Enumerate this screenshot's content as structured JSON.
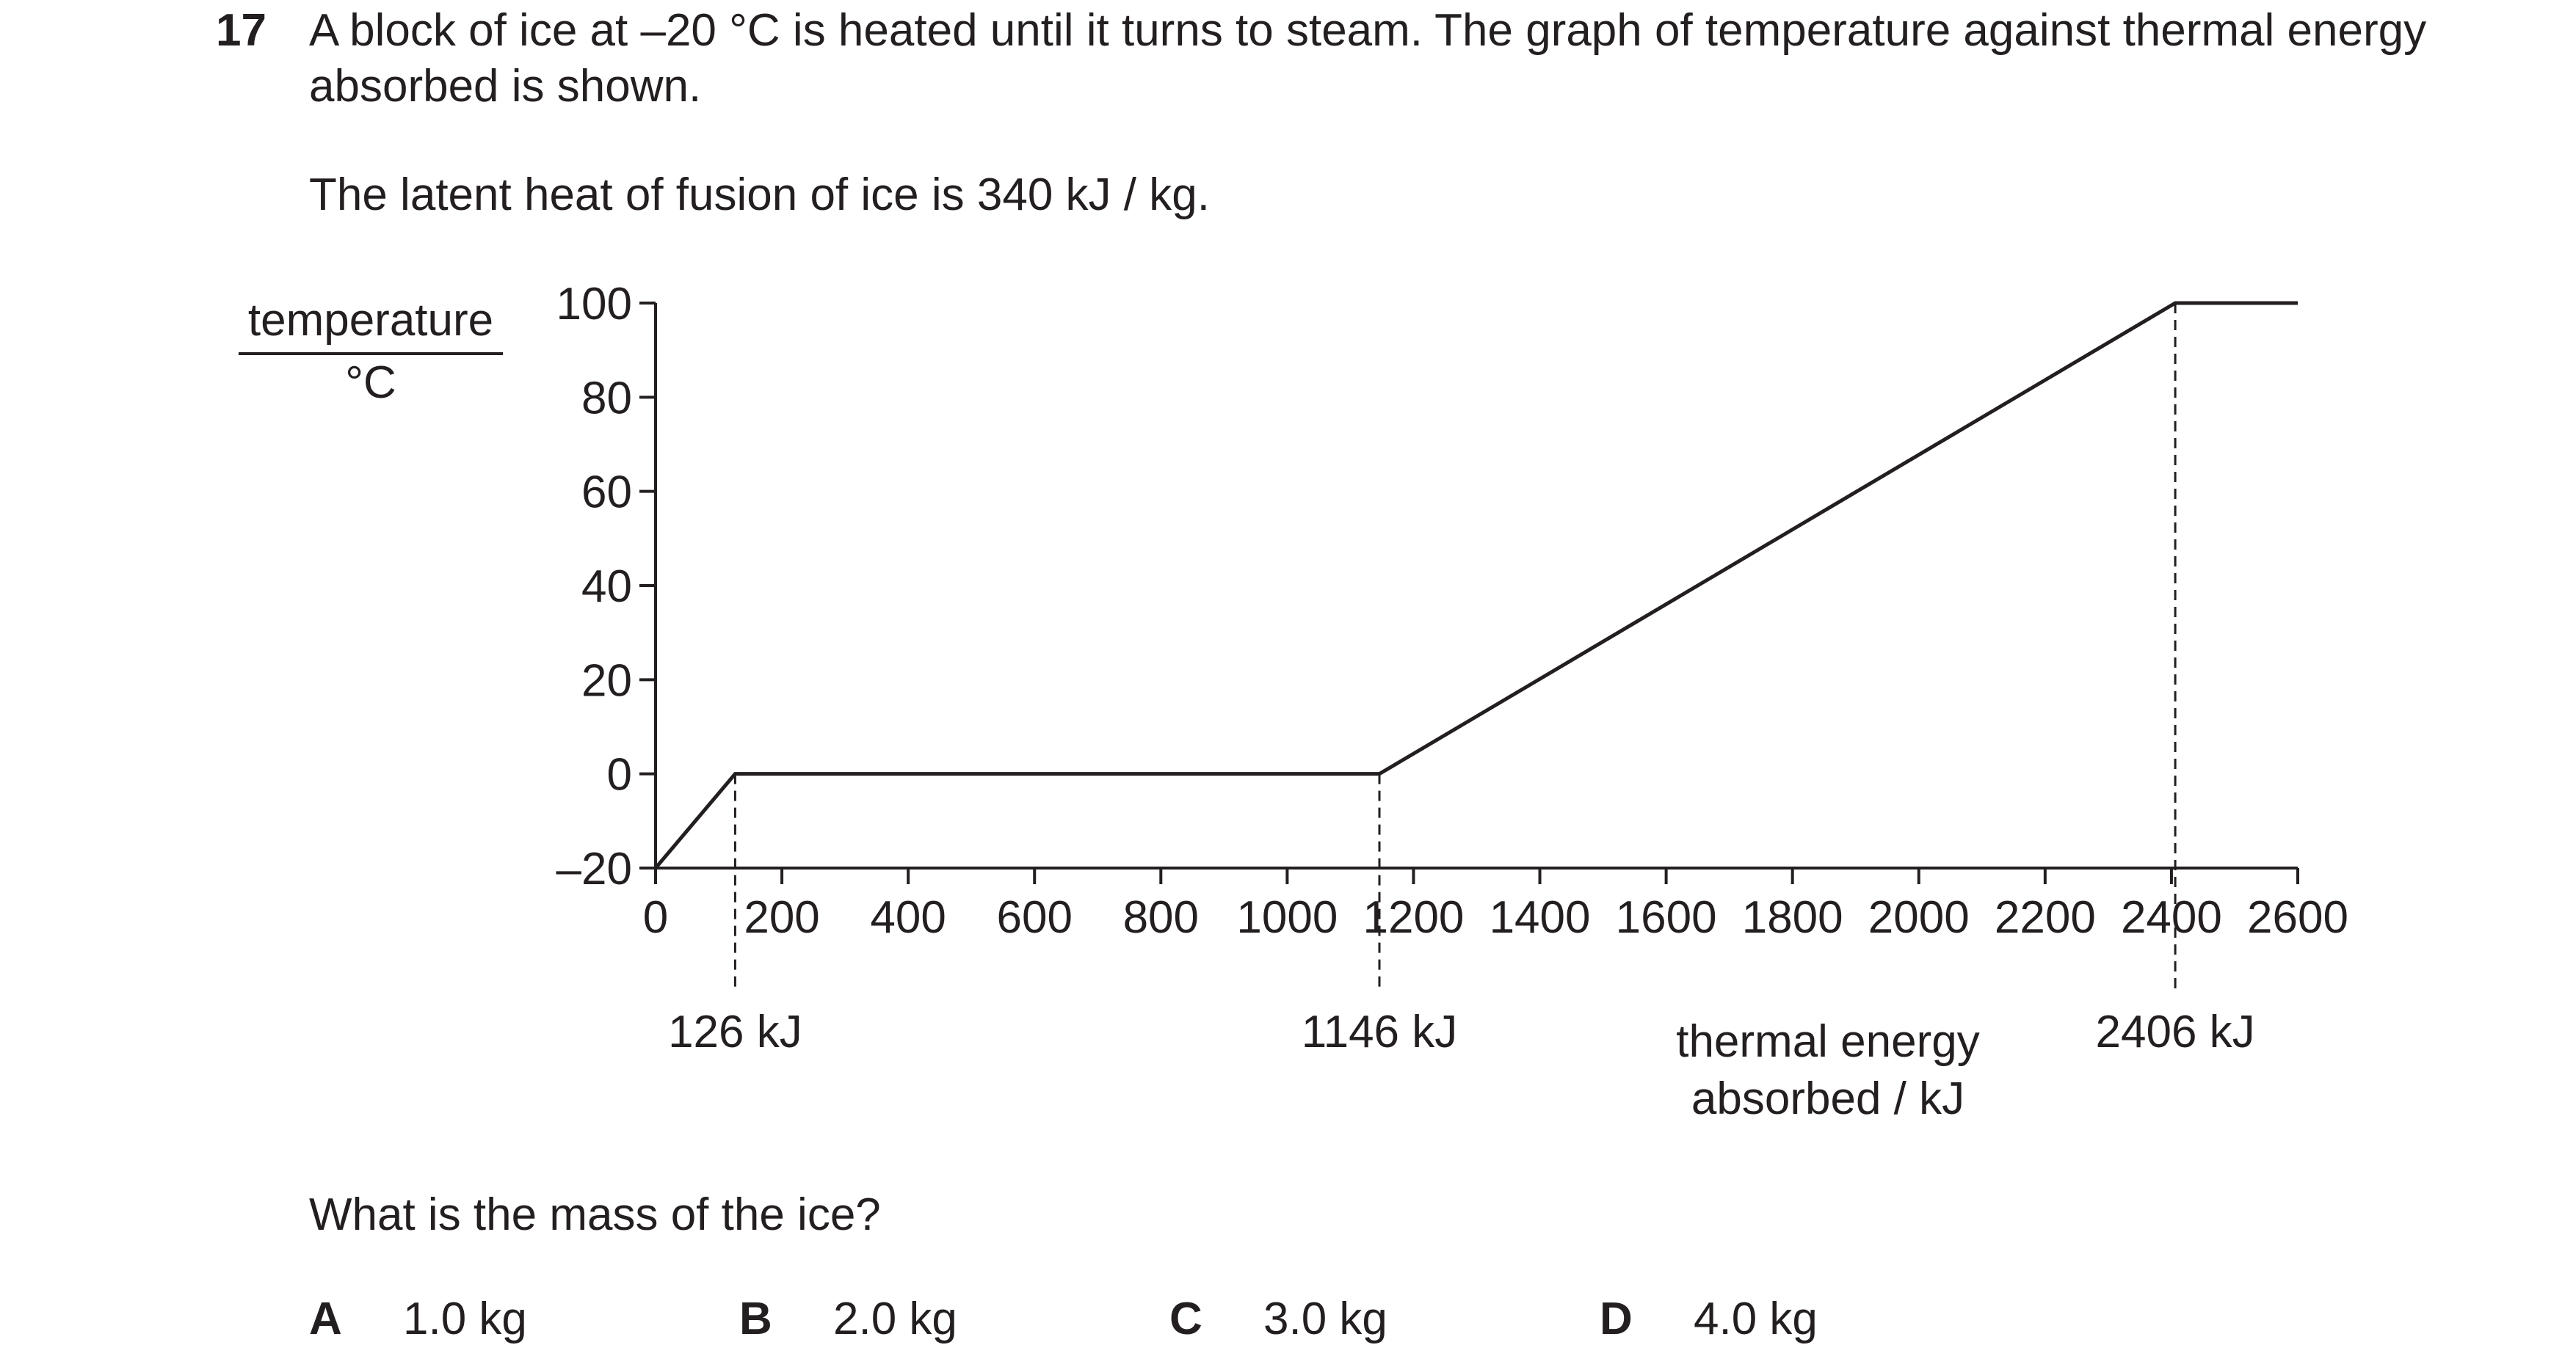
{
  "question": {
    "number": "17",
    "stem": "A block of ice at –20 °C is heated until it turns to steam. The graph of temperature against thermal energy absorbed is shown.",
    "given": "The latent heat of fusion of ice is 340 kJ / kg.",
    "prompt": "What is the mass of the ice?",
    "options": [
      {
        "letter": "A",
        "text": "1.0 kg"
      },
      {
        "letter": "B",
        "text": "2.0 kg"
      },
      {
        "letter": "C",
        "text": "3.0 kg"
      },
      {
        "letter": "D",
        "text": "4.0 kg"
      }
    ]
  },
  "chart_data": {
    "type": "line",
    "title": "",
    "ylabel_top": "temperature",
    "ylabel_bottom": "°C",
    "xlabel_line1": "thermal energy",
    "xlabel_line2": "absorbed / kJ",
    "xlim": [
      0,
      2600
    ],
    "ylim": [
      -20,
      100
    ],
    "x_ticks": [
      0,
      200,
      400,
      600,
      800,
      1000,
      1200,
      1400,
      1600,
      1800,
      2000,
      2200,
      2400,
      2600
    ],
    "x_tick_labels": [
      "0",
      "200",
      "400",
      "600",
      "800",
      "1000",
      "1200",
      "1400",
      "1600",
      "1800",
      "2000",
      "2200",
      "2400",
      "2600"
    ],
    "y_ticks": [
      -20,
      0,
      20,
      40,
      60,
      80,
      100
    ],
    "y_tick_labels": [
      "–20",
      "0",
      "20",
      "40",
      "60",
      "80",
      "100"
    ],
    "grid": false,
    "series": [
      {
        "x": [
          0,
          126,
          1146,
          2406,
          2600
        ],
        "y": [
          -20,
          0,
          0,
          100,
          100
        ]
      }
    ],
    "markers": [
      {
        "x": 126,
        "y": 0,
        "label": "126 kJ"
      },
      {
        "x": 1146,
        "y": 0,
        "label": "1146 kJ"
      },
      {
        "x": 2406,
        "y": 100,
        "label": "2406 kJ"
      }
    ]
  }
}
